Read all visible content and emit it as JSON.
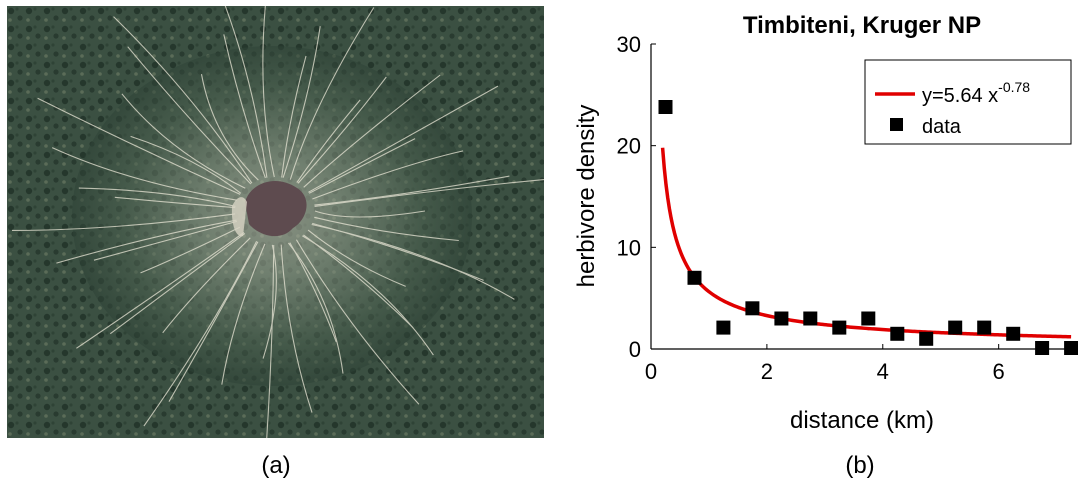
{
  "figure": {
    "panel_a_label": "(a)",
    "panel_b_label": "(b)",
    "photo_description_icon": "satellite-waterhole-icon",
    "colors": {
      "fit_line": "#e00000",
      "data_marker": "#000000",
      "water": "#5e4b4f",
      "vegetation_dark": "#2c4034",
      "vegetation_light": "#7d8a76",
      "trail": "#e9e6d6"
    }
  },
  "chart_data": {
    "type": "scatter",
    "title": "Timbiteni, Kruger NP",
    "xlabel": "distance (km)",
    "ylabel": "herbivore density",
    "xlim": [
      0,
      7.3
    ],
    "ylim": [
      0,
      30
    ],
    "xticks": [
      0,
      2,
      4,
      6
    ],
    "yticks": [
      0,
      10,
      20,
      30
    ],
    "grid": false,
    "legend_position": "top-right",
    "legend": {
      "fit_prefix": "y=5.64 x",
      "fit_exponent": "-0.78",
      "data_label": "data"
    },
    "fit": {
      "a": 5.64,
      "b": -0.78,
      "x_start": 0.2,
      "x_end": 7.25
    },
    "series": [
      {
        "name": "data",
        "x": [
          0.25,
          0.75,
          1.25,
          1.75,
          2.25,
          2.75,
          3.25,
          3.75,
          4.25,
          4.75,
          5.25,
          5.75,
          6.25,
          6.75,
          7.25
        ],
        "y": [
          23.8,
          7,
          2.1,
          4,
          3,
          3,
          2.1,
          3,
          1.5,
          1,
          2.1,
          2.1,
          1.5,
          0.1,
          0.1
        ]
      }
    ]
  }
}
